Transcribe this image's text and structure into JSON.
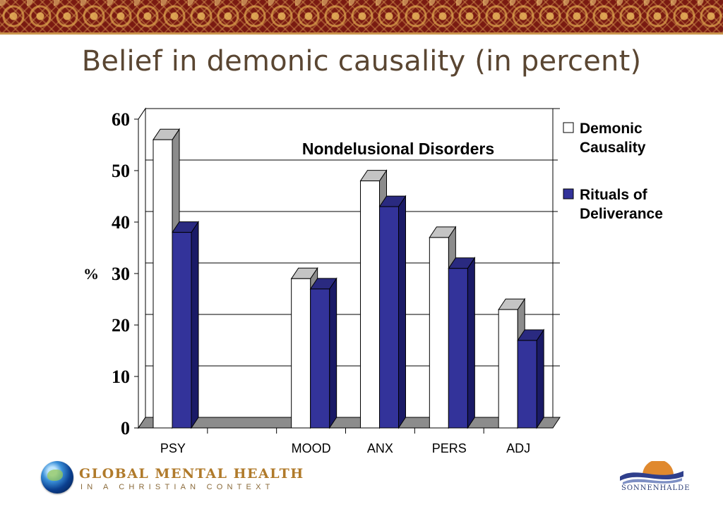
{
  "slide": {
    "title": "Belief in demonic causality (in percent)"
  },
  "colors": {
    "demonic": "#ffffff",
    "rituals": "#33339a",
    "floor": "#8c8c8c",
    "title_text": "#5a4632"
  },
  "chart_data": {
    "type": "bar",
    "subtitle": "Nondelusional Disorders",
    "ylabel": "%",
    "ylim": [
      0,
      60
    ],
    "yticks": [
      0,
      10,
      20,
      30,
      40,
      50,
      60
    ],
    "grid": true,
    "legend_position": "right",
    "three_d": true,
    "categories": [
      "PSY",
      "",
      "MOOD",
      "ANX",
      "PERS",
      "ADJ"
    ],
    "series": [
      {
        "name": "Demonic Causality",
        "values": [
          56,
          null,
          29,
          48,
          37,
          23
        ]
      },
      {
        "name": "Rituals of Deliverance",
        "values": [
          38,
          null,
          27,
          43,
          31,
          17
        ]
      }
    ]
  },
  "legend_lines": [
    [
      "Demonic",
      "Causality"
    ],
    [
      "Rituals of",
      "Deliverance"
    ]
  ],
  "footer": {
    "left_logo_title": "GLOBAL  MENTAL HEALTH",
    "left_logo_subtitle": "IN A CHRISTIAN CONTEXT",
    "left_logo_icon": "globe-icon",
    "right_logo_name": "SONNENHALDE",
    "right_logo_icon": "sun-wave-icon"
  }
}
